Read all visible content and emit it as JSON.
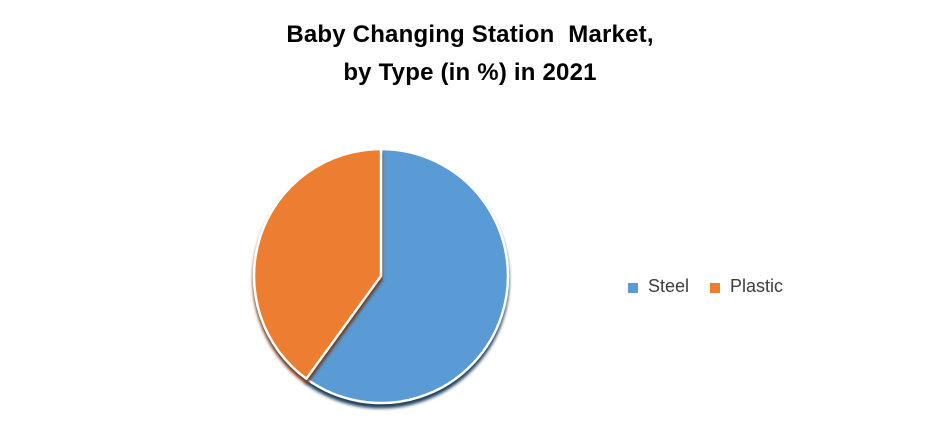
{
  "title": {
    "line1": "Baby Changing Station  Market,",
    "line2": "by Type (in %) in 2021"
  },
  "chart_data": {
    "type": "pie",
    "title": "Baby Changing Station Market, by Type (in %) in 2021",
    "labels": [
      "Steel",
      "Plastic"
    ],
    "values": [
      60,
      40
    ],
    "colors": [
      "#5B9BD5",
      "#ED7D31"
    ],
    "shadow_colors": [
      "#1E3E5C",
      "#6E3312"
    ],
    "slice_border_color": "#FFFFFF",
    "start_angle_deg": 0,
    "direction": "clockwise",
    "legend_position": "right",
    "data_labels_shown": false
  },
  "palette": {
    "background": "#FFFFFF",
    "title_text": "#000000",
    "legend_text": "#3D3D3D"
  }
}
